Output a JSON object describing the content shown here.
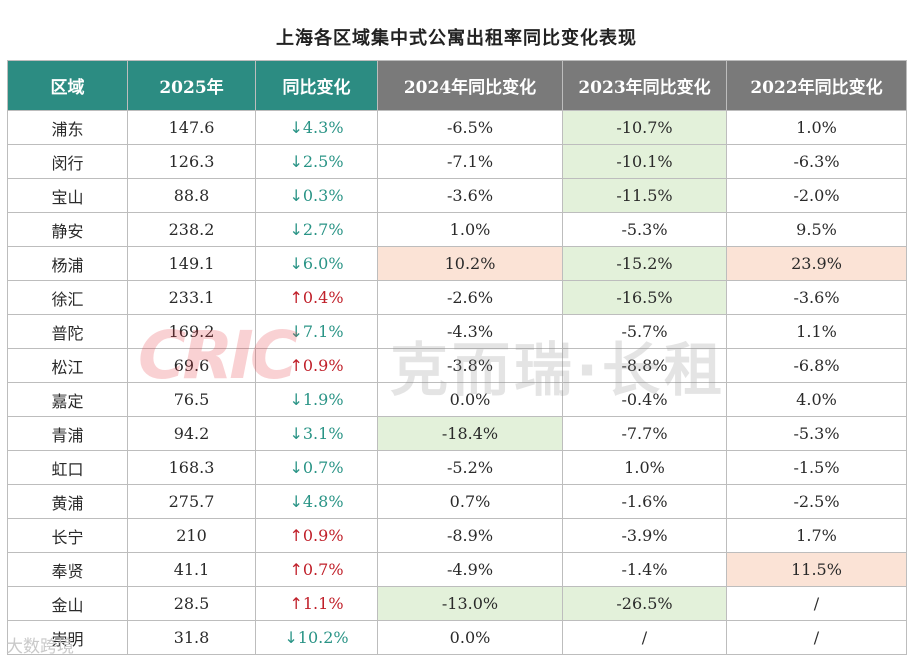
{
  "title": "上海各区域集中式公寓出租率同比变化表现",
  "headers": [
    "区域",
    "2025年",
    "同比变化",
    "2024年同比变化",
    "2023年同比变化",
    "2022年同比变化"
  ],
  "colors": {
    "teal_header": "#2c8c82",
    "gray_header": "#7a7a7a",
    "down": "#2a9486",
    "up": "#c0202a",
    "highlight_green": "#e3f1da",
    "highlight_orange": "#fbe3d6"
  },
  "rows": [
    {
      "district": "浦东",
      "y2025": "147.6",
      "change": "4.3%",
      "direction": "down",
      "y2024": "-6.5%",
      "y2023": "-10.7%",
      "y2022": "1.0%",
      "hl2024": "",
      "hl2023": "green",
      "hl2022": ""
    },
    {
      "district": "闵行",
      "y2025": "126.3",
      "change": "2.5%",
      "direction": "down",
      "y2024": "-7.1%",
      "y2023": "-10.1%",
      "y2022": "-6.3%",
      "hl2024": "",
      "hl2023": "green",
      "hl2022": ""
    },
    {
      "district": "宝山",
      "y2025": "88.8",
      "change": "0.3%",
      "direction": "down",
      "y2024": "-3.6%",
      "y2023": "-11.5%",
      "y2022": "-2.0%",
      "hl2024": "",
      "hl2023": "green",
      "hl2022": ""
    },
    {
      "district": "静安",
      "y2025": "238.2",
      "change": "2.7%",
      "direction": "down",
      "y2024": "1.0%",
      "y2023": "-5.3%",
      "y2022": "9.5%",
      "hl2024": "",
      "hl2023": "",
      "hl2022": ""
    },
    {
      "district": "杨浦",
      "y2025": "149.1",
      "change": "6.0%",
      "direction": "down",
      "y2024": "10.2%",
      "y2023": "-15.2%",
      "y2022": "23.9%",
      "hl2024": "orange",
      "hl2023": "green",
      "hl2022": "orange"
    },
    {
      "district": "徐汇",
      "y2025": "233.1",
      "change": "0.4%",
      "direction": "up",
      "y2024": "-2.6%",
      "y2023": "-16.5%",
      "y2022": "-3.6%",
      "hl2024": "",
      "hl2023": "green",
      "hl2022": ""
    },
    {
      "district": "普陀",
      "y2025": "169.2",
      "change": "7.1%",
      "direction": "down",
      "y2024": "-4.3%",
      "y2023": "-5.7%",
      "y2022": "1.1%",
      "hl2024": "",
      "hl2023": "",
      "hl2022": ""
    },
    {
      "district": "松江",
      "y2025": "69.6",
      "change": "0.9%",
      "direction": "up",
      "y2024": "-3.8%",
      "y2023": "-8.8%",
      "y2022": "-6.8%",
      "hl2024": "",
      "hl2023": "",
      "hl2022": ""
    },
    {
      "district": "嘉定",
      "y2025": "76.5",
      "change": "1.9%",
      "direction": "down",
      "y2024": "0.0%",
      "y2023": "-0.4%",
      "y2022": "4.0%",
      "hl2024": "",
      "hl2023": "",
      "hl2022": ""
    },
    {
      "district": "青浦",
      "y2025": "94.2",
      "change": "3.1%",
      "direction": "down",
      "y2024": "-18.4%",
      "y2023": "-7.7%",
      "y2022": "-5.3%",
      "hl2024": "green",
      "hl2023": "",
      "hl2022": ""
    },
    {
      "district": "虹口",
      "y2025": "168.3",
      "change": "0.7%",
      "direction": "down",
      "y2024": "-5.2%",
      "y2023": "1.0%",
      "y2022": "-1.5%",
      "hl2024": "",
      "hl2023": "",
      "hl2022": ""
    },
    {
      "district": "黄浦",
      "y2025": "275.7",
      "change": "4.8%",
      "direction": "down",
      "y2024": "0.7%",
      "y2023": "-1.6%",
      "y2022": "-2.5%",
      "hl2024": "",
      "hl2023": "",
      "hl2022": ""
    },
    {
      "district": "长宁",
      "y2025": "210",
      "change": "0.9%",
      "direction": "up",
      "y2024": "-8.9%",
      "y2023": "-3.9%",
      "y2022": "1.7%",
      "hl2024": "",
      "hl2023": "",
      "hl2022": ""
    },
    {
      "district": "奉贤",
      "y2025": "41.1",
      "change": "0.7%",
      "direction": "up",
      "y2024": "-4.9%",
      "y2023": "-1.4%",
      "y2022": "11.5%",
      "hl2024": "",
      "hl2023": "",
      "hl2022": "orange"
    },
    {
      "district": "金山",
      "y2025": "28.5",
      "change": "1.1%",
      "direction": "up",
      "y2024": "-13.0%",
      "y2023": "-26.5%",
      "y2022": "/",
      "hl2024": "green",
      "hl2023": "green",
      "hl2022": ""
    },
    {
      "district": "崇明",
      "y2025": "31.8",
      "change": "10.2%",
      "direction": "down",
      "y2024": "0.0%",
      "y2023": "/",
      "y2022": "/",
      "hl2024": "",
      "hl2023": "",
      "hl2022": ""
    }
  ],
  "watermark": {
    "logo": "CRIC",
    "text": "克而瑞·长租"
  },
  "corner_mark": "大数跨境"
}
